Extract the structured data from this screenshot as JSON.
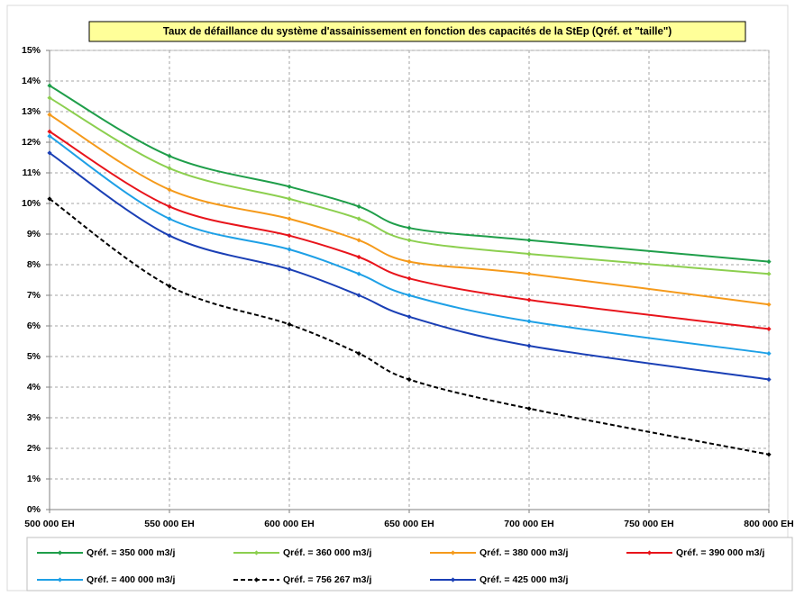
{
  "chart_data": {
    "type": "line",
    "title": "Taux de défaillance du système d'assainissement en fonction des capacités de la StEp (Qréf. et \"taille\")",
    "x": [
      500000,
      550000,
      600000,
      629000,
      650000,
      700000,
      800000
    ],
    "xlim": [
      500000,
      800000
    ],
    "xticks": [
      {
        "value": 500000,
        "label": "500 000 EH"
      },
      {
        "value": 550000,
        "label": "550 000 EH"
      },
      {
        "value": 600000,
        "label": "600 000 EH"
      },
      {
        "value": 650000,
        "label": "650 000 EH"
      },
      {
        "value": 700000,
        "label": "700 000 EH"
      },
      {
        "value": 750000,
        "label": "750 000 EH"
      },
      {
        "value": 800000,
        "label": "800 000 EH"
      }
    ],
    "ylim": [
      0,
      15
    ],
    "yticks": [
      {
        "value": 0,
        "label": "0%"
      },
      {
        "value": 1,
        "label": "1%"
      },
      {
        "value": 2,
        "label": "2%"
      },
      {
        "value": 3,
        "label": "3%"
      },
      {
        "value": 4,
        "label": "4%"
      },
      {
        "value": 5,
        "label": "5%"
      },
      {
        "value": 6,
        "label": "6%"
      },
      {
        "value": 7,
        "label": "7%"
      },
      {
        "value": 8,
        "label": "8%"
      },
      {
        "value": 9,
        "label": "9%"
      },
      {
        "value": 10,
        "label": "10%"
      },
      {
        "value": 11,
        "label": "11%"
      },
      {
        "value": 12,
        "label": "12%"
      },
      {
        "value": 13,
        "label": "13%"
      },
      {
        "value": 14,
        "label": "14%"
      },
      {
        "value": 15,
        "label": "15%"
      }
    ],
    "grid": true,
    "smooth": true,
    "legend": "bottom",
    "series": [
      {
        "name": "Qréf. = 350 000 m3/j",
        "color": "#1f9e4a",
        "values": [
          13.85,
          11.55,
          10.55,
          9.9,
          9.2,
          8.8,
          8.1
        ]
      },
      {
        "name": "Qréf. = 360 000 m3/j",
        "color": "#8ccf4f",
        "values": [
          13.45,
          11.15,
          10.15,
          9.5,
          8.8,
          8.35,
          7.7
        ]
      },
      {
        "name": "Qréf. = 380 000 m3/j",
        "color": "#f59a1b",
        "values": [
          12.9,
          10.45,
          9.5,
          8.8,
          8.1,
          7.7,
          6.7
        ]
      },
      {
        "name": "Qréf. = 390 000 m3/j",
        "color": "#e8141b",
        "values": [
          12.35,
          9.9,
          8.95,
          8.25,
          7.55,
          6.85,
          5.9
        ]
      },
      {
        "name": "Qréf. = 400 000 m3/j",
        "color": "#1ea0e6",
        "values": [
          12.2,
          9.5,
          8.5,
          7.7,
          7.0,
          6.15,
          5.1
        ]
      },
      {
        "name": "Qréf. = 756 267 m3/j",
        "color": "#000000",
        "dashed": true,
        "values": [
          10.15,
          7.3,
          6.05,
          5.1,
          4.25,
          3.3,
          1.8
        ]
      },
      {
        "name": "Qréf. = 425 000 m3/j",
        "color": "#1a3fb5",
        "values": [
          11.65,
          8.95,
          7.85,
          7.0,
          6.3,
          5.35,
          4.25
        ]
      }
    ]
  }
}
